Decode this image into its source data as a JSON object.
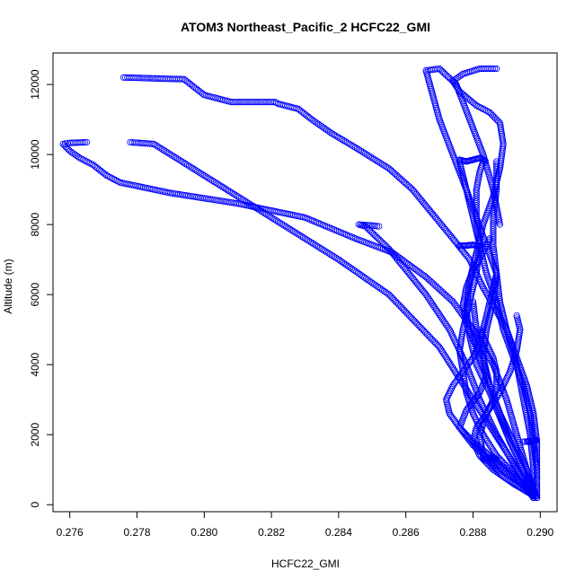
{
  "chart_data": {
    "type": "scatter",
    "title": "ATOM3 Northeast_Pacific_2 HCFC22_GMI",
    "xlabel": "HCFC22_GMI",
    "ylabel": "Altitude (m)",
    "xlim": [
      0.2755,
      0.2905
    ],
    "ylim": [
      -200,
      12900
    ],
    "x_ticks": [
      {
        "value": 0.276,
        "label": "0.276"
      },
      {
        "value": 0.278,
        "label": "0.278"
      },
      {
        "value": 0.28,
        "label": "0.280"
      },
      {
        "value": 0.282,
        "label": "0.282"
      },
      {
        "value": 0.284,
        "label": "0.284"
      },
      {
        "value": 0.286,
        "label": "0.286"
      },
      {
        "value": 0.288,
        "label": "0.288"
      },
      {
        "value": 0.29,
        "label": "0.290"
      }
    ],
    "y_ticks": [
      {
        "value": 0,
        "label": "0"
      },
      {
        "value": 2000,
        "label": "2000"
      },
      {
        "value": 4000,
        "label": "4000"
      },
      {
        "value": 6000,
        "label": "6000"
      },
      {
        "value": 8000,
        "label": "8000"
      },
      {
        "value": 10000,
        "label": "10000"
      },
      {
        "value": 12000,
        "label": "12000"
      }
    ],
    "grid": false,
    "marker": "open-circle",
    "color": "#0000ff",
    "series": [
      {
        "x": [
          0.2898,
          0.2898,
          0.2897,
          0.2895,
          0.2893,
          0.289,
          0.2886,
          0.2883,
          0.2881,
          0.2879,
          0.2874,
          0.2868,
          0.2862,
          0.2855,
          0.2845,
          0.2838,
          0.2832,
          0.2828,
          0.2822,
          0.2821,
          0.2808,
          0.28,
          0.2794,
          0.2786,
          0.278,
          0.2776
        ],
        "y": [
          200,
          1000,
          2000,
          3000,
          4000,
          5000,
          5700,
          6200,
          6600,
          7000,
          7600,
          8300,
          9000,
          9600,
          10200,
          10600,
          11000,
          11300,
          11450,
          11500,
          11500,
          11700,
          12150,
          12170,
          12190,
          12200
        ]
      },
      {
        "x": [
          0.2898,
          0.2896,
          0.2893,
          0.289,
          0.2886,
          0.288,
          0.2874,
          0.2866,
          0.2856,
          0.2845,
          0.283,
          0.281,
          0.279,
          0.2775,
          0.2771,
          0.2767,
          0.2763,
          0.276,
          0.2758,
          0.276,
          0.2765
        ],
        "y": [
          200,
          1000,
          2000,
          3000,
          4000,
          5000,
          5800,
          6500,
          7200,
          7600,
          8200,
          8600,
          8900,
          9200,
          9400,
          9700,
          9900,
          10100,
          10300,
          10330,
          10350
        ]
      },
      {
        "x": [
          0.2898,
          0.2893,
          0.2887,
          0.2882,
          0.2878,
          0.2873,
          0.2866,
          0.2855,
          0.2848,
          0.2846,
          0.2849,
          0.2852
        ],
        "y": [
          200,
          1000,
          2000,
          3000,
          4000,
          5000,
          6000,
          7300,
          7950,
          8000,
          7980,
          7950
        ]
      },
      {
        "x": [
          0.2898,
          0.289,
          0.288,
          0.287,
          0.2855,
          0.284,
          0.282,
          0.28,
          0.2785,
          0.2778
        ],
        "y": [
          200,
          1500,
          3000,
          4500,
          6000,
          7000,
          8200,
          9400,
          10300,
          10350
        ]
      },
      {
        "x": [
          0.2898,
          0.2895,
          0.2891,
          0.2888,
          0.2885,
          0.2881,
          0.2879,
          0.2878,
          0.2879,
          0.2881,
          0.2883,
          0.2886,
          0.2888,
          0.2889,
          0.2888,
          0.2885,
          0.2881,
          0.2876,
          0.2874,
          0.2877,
          0.2882,
          0.2887
        ],
        "y": [
          200,
          1000,
          1800,
          2500,
          3200,
          4000,
          4800,
          5600,
          6400,
          7200,
          8000,
          8800,
          9600,
          10300,
          10900,
          11200,
          11400,
          11800,
          12100,
          12300,
          12450,
          12450
        ]
      },
      {
        "x": [
          0.2898,
          0.2893,
          0.2887,
          0.2883,
          0.288,
          0.2878,
          0.2877,
          0.2876,
          0.2877,
          0.2879,
          0.2881,
          0.2882,
          0.288,
          0.2878,
          0.287,
          0.2866,
          0.287,
          0.2875,
          0.2879,
          0.2883,
          0.2886,
          0.2888
        ],
        "y": [
          200,
          800,
          1400,
          2000,
          2600,
          3200,
          3800,
          4400,
          5000,
          5800,
          6600,
          7400,
          8200,
          9000,
          11000,
          12400,
          12450,
          12000,
          11000,
          10000,
          9000,
          8000
        ]
      },
      {
        "x": [
          0.2899,
          0.2899,
          0.2899,
          0.2898,
          0.2896,
          0.2893,
          0.289,
          0.2888,
          0.2887,
          0.2886,
          0.2886,
          0.2887,
          0.2887
        ],
        "y": [
          200,
          1000,
          1800,
          2600,
          3400,
          4200,
          5000,
          5800,
          6600,
          7400,
          8200,
          9000,
          9800
        ]
      },
      {
        "x": [
          0.2899,
          0.2896,
          0.2892,
          0.2888,
          0.2885,
          0.2883,
          0.2884,
          0.2886,
          0.2887,
          0.2884,
          0.2881,
          0.2878,
          0.2876
        ],
        "y": [
          200,
          1000,
          1800,
          2600,
          3400,
          4200,
          5000,
          5800,
          6600,
          7400,
          8200,
          9000,
          9800
        ]
      },
      {
        "x": [
          0.2899,
          0.2895,
          0.289,
          0.2885,
          0.288,
          0.2876,
          0.2873,
          0.2872,
          0.2874,
          0.2877,
          0.288,
          0.2882,
          0.2883,
          0.2884,
          0.2885,
          0.2886,
          0.2887
        ],
        "y": [
          200,
          600,
          1000,
          1400,
          1800,
          2200,
          2600,
          3000,
          3400,
          3800,
          4200,
          4600,
          5000,
          5400,
          5800,
          6200,
          6600
        ]
      },
      {
        "x": [
          0.2899,
          0.2893,
          0.2886,
          0.288,
          0.2876,
          0.2878,
          0.2882,
          0.2884,
          0.2883,
          0.288,
          0.2878,
          0.2877,
          0.2878,
          0.288,
          0.2883,
          0.2885
        ],
        "y": [
          200,
          700,
          1200,
          1700,
          2200,
          2700,
          3200,
          3700,
          4200,
          4700,
          5200,
          5700,
          6200,
          6700,
          7200,
          7600
        ]
      },
      {
        "x": [
          0.2899,
          0.2892,
          0.2886,
          0.2882,
          0.288,
          0.2881,
          0.2884,
          0.2886,
          0.2887,
          0.2887,
          0.2886,
          0.2884,
          0.2882
        ],
        "y": [
          200,
          600,
          1000,
          1400,
          1800,
          2200,
          2600,
          3000,
          3400,
          3800,
          4200,
          4600,
          5000
        ]
      },
      {
        "x": [
          0.2899,
          0.2889,
          0.2883,
          0.2882,
          0.2884,
          0.2888,
          0.2891,
          0.2893,
          0.2894,
          0.2893
        ],
        "y": [
          200,
          800,
          1400,
          2000,
          2600,
          3200,
          3800,
          4400,
          5000,
          5400
        ]
      },
      {
        "x": [
          0.2899,
          0.2899,
          0.2898,
          0.2897,
          0.2895,
          0.2892,
          0.2889,
          0.2887,
          0.2884,
          0.2882,
          0.2881,
          0.2881,
          0.2882,
          0.2883
        ],
        "y": [
          200,
          1000,
          1800,
          2600,
          3400,
          4200,
          5000,
          5800,
          6600,
          7400,
          8200,
          9000,
          9500,
          9800
        ]
      },
      {
        "x": [
          0.2899,
          0.2895,
          0.2891,
          0.2888,
          0.2885,
          0.2882,
          0.2881,
          0.288
        ],
        "y": [
          200,
          1000,
          1800,
          2600,
          3400,
          4200,
          5000,
          5800
        ]
      }
    ],
    "dense_clusters": [
      {
        "x": [
          0.2895,
          0.2898,
          0.2899,
          0.2898,
          0.2896
        ],
        "y": [
          1800,
          1800,
          1850,
          1800,
          1820
        ]
      },
      {
        "x": [
          0.2876,
          0.2878,
          0.288,
          0.2882
        ],
        "y": [
          7400,
          7400,
          7420,
          7380
        ]
      },
      {
        "x": [
          0.2876,
          0.2878,
          0.288,
          0.2882,
          0.2884
        ],
        "y": [
          9850,
          9800,
          9850,
          9900,
          9800
        ]
      },
      {
        "x": [
          0.2885,
          0.2886,
          0.2887,
          0.2886,
          0.2885
        ],
        "y": [
          1300,
          1350,
          1300,
          1320,
          1340
        ]
      },
      {
        "x": [
          0.2883,
          0.2884,
          0.2885,
          0.2886
        ],
        "y": [
          1300,
          1320,
          1350,
          1380
        ]
      }
    ]
  }
}
